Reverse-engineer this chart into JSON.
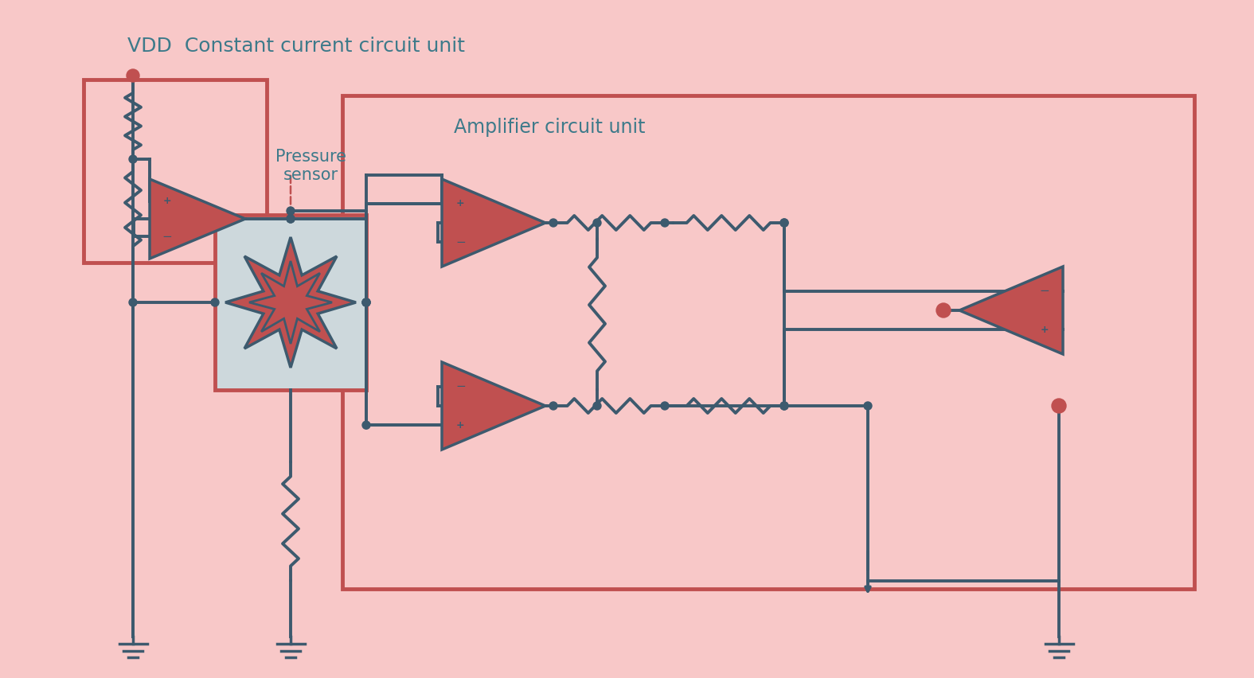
{
  "bg_color": "#f8c8c8",
  "wire_color": "#3d5a6e",
  "opamp_fill": "#c05050",
  "box_red": "#c05050",
  "sensor_bg": "#cdd8dc",
  "text_color": "#3d7a8a",
  "title": "VDD  Constant current circuit unit",
  "label_pressure": "Pressure\nsensor",
  "label_amplifier": "Amplifier circuit unit",
  "lw": 2.8
}
